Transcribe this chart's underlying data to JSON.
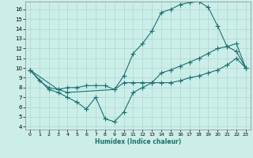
{
  "xlabel": "Humidex (Indice chaleur)",
  "bg_color": "#cceee8",
  "grid_color": "#aad8d0",
  "line_color": "#1a7070",
  "xlim": [
    -0.5,
    23.5
  ],
  "ylim": [
    3.7,
    16.8
  ],
  "yticks": [
    4,
    5,
    6,
    7,
    8,
    9,
    10,
    11,
    12,
    13,
    14,
    15,
    16
  ],
  "xticks": [
    0,
    1,
    2,
    3,
    4,
    5,
    6,
    7,
    8,
    9,
    10,
    11,
    12,
    13,
    14,
    15,
    16,
    17,
    18,
    19,
    20,
    21,
    22,
    23
  ],
  "line1_x": [
    0,
    1,
    2,
    3,
    4,
    5,
    6,
    7,
    8,
    9,
    10,
    11,
    12,
    13,
    14,
    15,
    16,
    17,
    18,
    19,
    20,
    21,
    22,
    23
  ],
  "line1_y": [
    9.8,
    8.7,
    8.0,
    7.8,
    8.0,
    8.0,
    8.2,
    8.2,
    8.2,
    7.8,
    8.5,
    8.5,
    8.5,
    8.5,
    8.5,
    8.5,
    8.7,
    9.0,
    9.2,
    9.5,
    9.8,
    10.3,
    11.0,
    10.0
  ],
  "line2_x": [
    0,
    3,
    4,
    9,
    10,
    11,
    12,
    13,
    14,
    15,
    16,
    17,
    18,
    19,
    20,
    21,
    22,
    23
  ],
  "line2_y": [
    9.8,
    7.8,
    7.5,
    7.8,
    9.2,
    11.5,
    12.5,
    13.8,
    15.7,
    16.0,
    16.5,
    16.7,
    16.8,
    16.2,
    14.3,
    12.2,
    11.7,
    10.0
  ],
  "line3_x": [
    0,
    2,
    3,
    4,
    5,
    6,
    7,
    8,
    9,
    10,
    11,
    12,
    13,
    14,
    15,
    16,
    17,
    18,
    19,
    20,
    21,
    22,
    23
  ],
  "line3_y": [
    9.8,
    7.8,
    7.5,
    7.0,
    6.5,
    5.8,
    7.0,
    4.8,
    4.5,
    5.5,
    7.5,
    8.0,
    8.5,
    9.5,
    9.8,
    10.2,
    10.6,
    11.0,
    11.5,
    12.0,
    12.2,
    12.5,
    10.0
  ]
}
